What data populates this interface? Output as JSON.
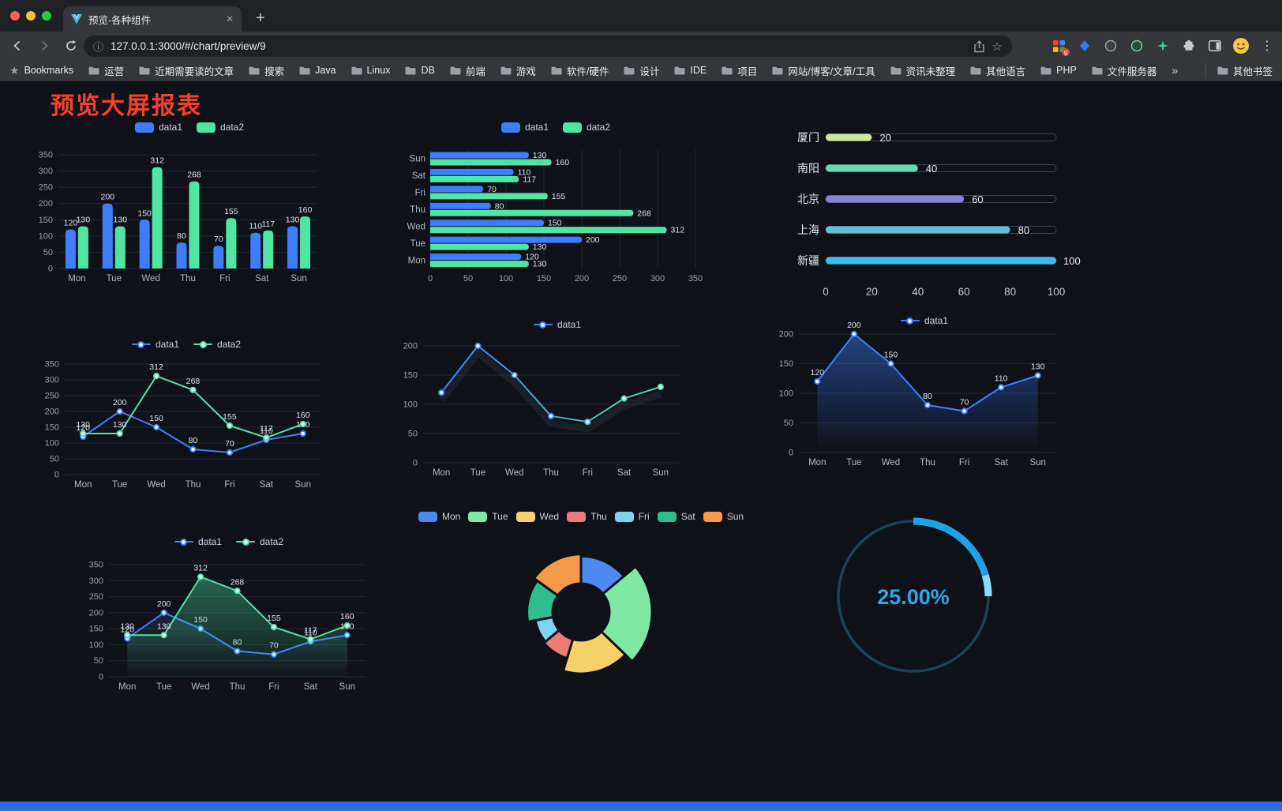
{
  "browser": {
    "tab": {
      "title": "预览-各种组件"
    },
    "address": {
      "url_host": "127.0.0.1:3000",
      "url_path": "/#/chart/preview/9"
    },
    "bookmarks": {
      "label": "Bookmarks",
      "folders": [
        "运营",
        "近期需要读的文章",
        "搜索",
        "Java",
        "Linux",
        "DB",
        "前端",
        "游戏",
        "软件/硬件",
        "设计",
        "IDE",
        "项目",
        "网站/博客/文章/工具",
        "资讯未整理",
        "其他语言",
        "PHP",
        "文件服务器"
      ],
      "overflow": "»",
      "other": "其他书签"
    }
  },
  "page": {
    "title": "预览大屏报表"
  },
  "chart_data": [
    {
      "id": "bar-grouped",
      "type": "bar",
      "categories": [
        "Mon",
        "Tue",
        "Wed",
        "Thu",
        "Fri",
        "Sat",
        "Sun"
      ],
      "series": [
        {
          "name": "data1",
          "color": "#3D7EFF",
          "values": [
            120,
            200,
            150,
            80,
            70,
            110,
            130
          ]
        },
        {
          "name": "data2",
          "color": "#4FE6A4",
          "values": [
            130,
            130,
            312,
            268,
            155,
            117,
            160
          ]
        }
      ],
      "ylim": [
        0,
        350
      ],
      "yticks": [
        0,
        50,
        100,
        150,
        200,
        250,
        300,
        350
      ],
      "legend_position": "top",
      "grid": true,
      "show_labels": true
    },
    {
      "id": "bar-horizontal",
      "type": "bar",
      "orientation": "horizontal",
      "categories": [
        "Mon",
        "Tue",
        "Wed",
        "Thu",
        "Fri",
        "Sat",
        "Sun"
      ],
      "series": [
        {
          "name": "data1",
          "color": "#3D7EFF",
          "values": [
            120,
            200,
            150,
            80,
            70,
            110,
            130
          ]
        },
        {
          "name": "data2",
          "color": "#4FE6A4",
          "values": [
            130,
            130,
            312,
            268,
            155,
            117,
            160
          ]
        }
      ],
      "xlim": [
        0,
        350
      ],
      "xticks": [
        0,
        50,
        100,
        150,
        200,
        250,
        300,
        350
      ],
      "legend_position": "top",
      "grid": true,
      "show_labels": true
    },
    {
      "id": "progress-bars",
      "type": "bar",
      "orientation": "progress",
      "categories": [
        "厦门",
        "南阳",
        "北京",
        "上海",
        "新疆"
      ],
      "values": [
        20,
        40,
        60,
        80,
        100
      ],
      "colors": [
        "#CDE79B",
        "#63D9AE",
        "#8583DE",
        "#62BFD8",
        "#36BEEC"
      ],
      "xlim": [
        0,
        100
      ],
      "xticks": [
        0,
        20,
        40,
        60,
        80,
        100
      ]
    },
    {
      "id": "line-two",
      "type": "line",
      "categories": [
        "Mon",
        "Tue",
        "Wed",
        "Thu",
        "Fri",
        "Sat",
        "Sun"
      ],
      "series": [
        {
          "name": "data1",
          "color": "#3D7EFF",
          "values": [
            120,
            200,
            150,
            80,
            70,
            110,
            130
          ]
        },
        {
          "name": "data2",
          "color": "#4FE6A4",
          "values": [
            130,
            130,
            312,
            268,
            155,
            117,
            160
          ]
        }
      ],
      "ylim": [
        0,
        350
      ],
      "yticks": [
        0,
        50,
        100,
        150,
        200,
        250,
        300,
        350
      ],
      "legend_position": "top",
      "show_labels": true
    },
    {
      "id": "line-gradient",
      "type": "line",
      "categories": [
        "Mon",
        "Tue",
        "Wed",
        "Thu",
        "Fri",
        "Sat",
        "Sun"
      ],
      "series": [
        {
          "name": "data1",
          "color_start": "#3D7EFF",
          "color_end": "#4FE6A4",
          "values": [
            120,
            200,
            150,
            80,
            70,
            110,
            130
          ]
        }
      ],
      "ylim": [
        0,
        200
      ],
      "yticks": [
        0,
        50,
        100,
        150,
        200
      ],
      "legend_position": "top",
      "show_labels": false
    },
    {
      "id": "line-area",
      "type": "area",
      "categories": [
        "Mon",
        "Tue",
        "Wed",
        "Thu",
        "Fri",
        "Sat",
        "Sun"
      ],
      "series": [
        {
          "name": "data1",
          "color": "#3D7EFF",
          "values": [
            120,
            200,
            150,
            80,
            70,
            110,
            130
          ]
        }
      ],
      "ylim": [
        0,
        200
      ],
      "yticks": [
        0,
        50,
        100,
        150,
        200
      ],
      "legend_position": "top",
      "show_labels": true
    },
    {
      "id": "line-two-area",
      "type": "area",
      "categories": [
        "Mon",
        "Tue",
        "Wed",
        "Thu",
        "Fri",
        "Sat",
        "Sun"
      ],
      "series": [
        {
          "name": "data1",
          "color": "#3D7EFF",
          "values": [
            120,
            200,
            150,
            80,
            70,
            110,
            130
          ]
        },
        {
          "name": "data2",
          "color": "#4FE6A4",
          "values": [
            130,
            130,
            312,
            268,
            155,
            117,
            160
          ]
        }
      ],
      "ylim": [
        0,
        350
      ],
      "yticks": [
        0,
        50,
        100,
        150,
        200,
        250,
        300,
        350
      ],
      "legend_position": "top",
      "show_labels": true
    },
    {
      "id": "rose-pie",
      "type": "pie",
      "rose": true,
      "categories": [
        "Mon",
        "Tue",
        "Wed",
        "Thu",
        "Fri",
        "Sat",
        "Sun"
      ],
      "values": [
        120,
        200,
        150,
        80,
        70,
        110,
        130
      ],
      "colors": [
        "#4D89F2",
        "#7FE8A4",
        "#F7D168",
        "#EF7A76",
        "#7ED2F4",
        "#2CBE8D",
        "#F59A4B"
      ],
      "legend_position": "top"
    },
    {
      "id": "ring-progress",
      "type": "gauge",
      "value": 25,
      "label": "25.00%",
      "color": "#1FA3E8",
      "tip_color": "#8ADBFB",
      "track_color": "#17445A",
      "text_color": "#2AA8EA"
    }
  ]
}
